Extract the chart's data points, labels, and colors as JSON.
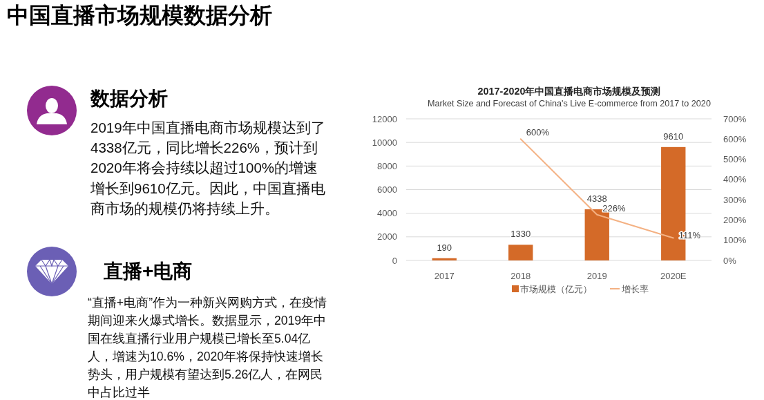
{
  "chart_data": [
    {
      "type": "other",
      "title": "中国直播市场规模数据分析"
    },
    {
      "type": "other",
      "title": "数据分析",
      "annotations": [
        "2019年中国直播电商市场规模达到了4338亿元，同比增长226%，预计到2020年将会持续以超过100%的增速增长到9610亿元。因此，中国直播电商市场的规模仍将持续上升。"
      ]
    },
    {
      "type": "other",
      "title": "直播+电商",
      "annotations": [
        "“直播+电商”作为一种新兴网购方式，在疫情期间迎来火爆式增长。数据显示，2019年中国在线直播行业用户规模已增长至5.04亿人，增速为10.6%，2020年将保持快速增长势头，用户规模有望达到5.26亿人，在网民中占比过半"
      ]
    },
    {
      "type": "bar",
      "title": "2017-2020年中国直播电商市场规模及预测",
      "subtitle": "Market Size and Forecast of China's Live E-commerce from 2017 to 2020",
      "categories": [
        "2017",
        "2018",
        "2019",
        "2020E"
      ],
      "series": [
        {
          "name": "市场规模（亿元）",
          "type": "bar",
          "color": "#d46a28",
          "values": [
            190,
            1330,
            4338,
            9610
          ],
          "value_labels": [
            "190",
            "1330",
            "4338",
            "9610"
          ]
        },
        {
          "name": "增长率",
          "type": "line",
          "axis": "y2",
          "color": "#f4b183",
          "values": [
            null,
            600,
            226,
            111
          ],
          "value_labels": [
            null,
            "600%",
            "226%",
            "111%"
          ]
        }
      ],
      "ylim": [
        0,
        12000
      ],
      "yticks": [
        0,
        2000,
        4000,
        6000,
        8000,
        10000,
        12000
      ],
      "y2lim": [
        0,
        700
      ],
      "y2ticks": [
        {
          "value": 0,
          "label": "0%"
        },
        {
          "value": 100,
          "label": "100%"
        },
        {
          "value": 200,
          "label": "200%"
        },
        {
          "value": 300,
          "label": "300%"
        },
        {
          "value": 400,
          "label": "400%"
        },
        {
          "value": 500,
          "label": "500%"
        },
        {
          "value": 600,
          "label": "600%"
        },
        {
          "value": 700,
          "label": "700%"
        }
      ],
      "grid": "y",
      "legend": "bottom"
    }
  ]
}
